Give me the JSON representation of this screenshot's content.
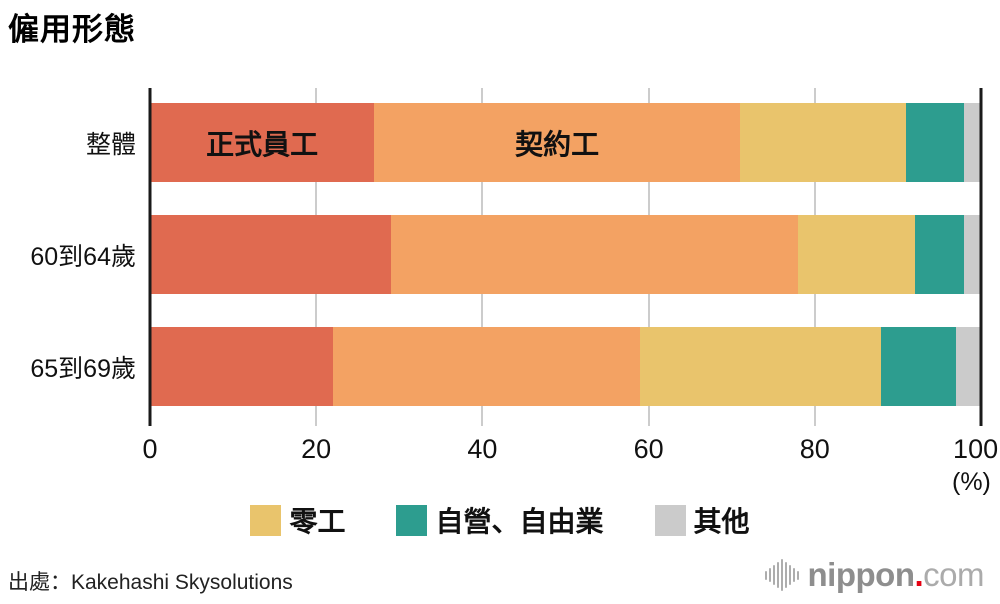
{
  "title": "僱用形態",
  "chart_data": {
    "type": "bar",
    "orientation": "horizontal",
    "stacked": true,
    "categories": [
      "整體",
      "60到64歲",
      "65到69歲"
    ],
    "series": [
      {
        "name": "正式員工",
        "color": "#E06A50",
        "values": [
          27,
          29,
          22
        ],
        "label_in_bar": true,
        "in_legend": false
      },
      {
        "name": "契約工",
        "color": "#F3A263",
        "values": [
          44,
          49,
          37
        ],
        "label_in_bar": true,
        "in_legend": false
      },
      {
        "name": "零工",
        "color": "#E9C46C",
        "values": [
          20,
          14,
          29
        ],
        "label_in_bar": false,
        "in_legend": true
      },
      {
        "name": "自營、自由業",
        "color": "#2D9D8F",
        "values": [
          7,
          6,
          9
        ],
        "label_in_bar": false,
        "in_legend": true
      },
      {
        "name": "其他",
        "color": "#CBCBCB",
        "values": [
          2,
          2,
          3
        ],
        "label_in_bar": false,
        "in_legend": true
      }
    ],
    "xlim": [
      0,
      100
    ],
    "x_ticks": [
      0,
      20,
      40,
      60,
      80,
      100
    ],
    "x_unit": "(%)",
    "grid": true,
    "legend_position": "bottom",
    "axis_color": "#1A1A1A",
    "gridline_color": "#CCCCCC"
  },
  "footer": {
    "source": "出處：Kakehashi Skysolutions",
    "logo": {
      "icon": "soundwave-icon",
      "text_main": "nippon",
      "dot": ".",
      "text_suffix": "com",
      "dot_color": "#E60012"
    }
  }
}
